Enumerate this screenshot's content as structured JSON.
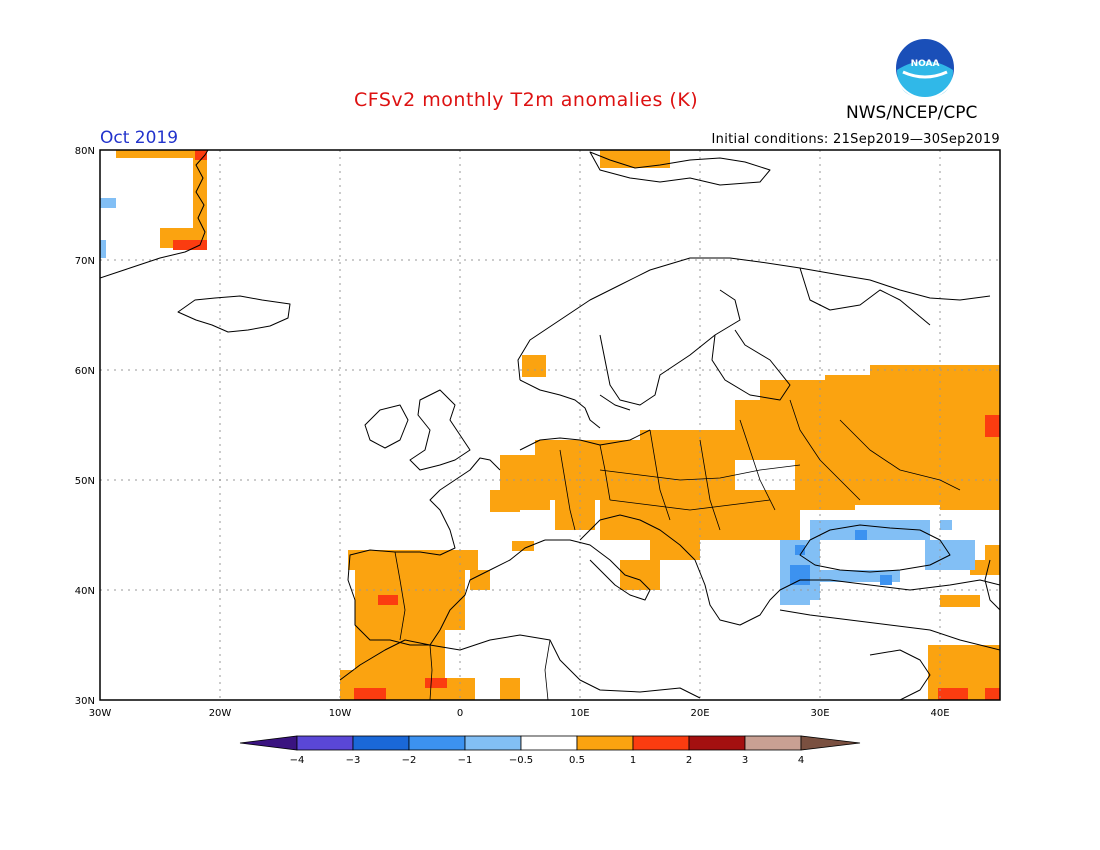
{
  "header": {
    "title": "CFSv2 monthly T2m anomalies (K)",
    "agency": "NWS/NCEP/CPC",
    "logo_text": "NOAA",
    "month_label": "Oct 2019",
    "init_conditions": "Initial conditions: 21Sep2019—30Sep2019"
  },
  "map": {
    "lon_ticks": [
      "30W",
      "20W",
      "10W",
      "0",
      "10E",
      "20E",
      "30E",
      "40E"
    ],
    "lat_ticks": [
      "30N",
      "40N",
      "50N",
      "60N",
      "70N",
      "80N"
    ],
    "lon_range": [
      -30,
      45
    ],
    "lat_range": [
      30,
      80
    ],
    "legend_labels": [
      "−4",
      "−3",
      "−2",
      "−1",
      "−0.5",
      "0.5",
      "1",
      "2",
      "3",
      "4"
    ]
  },
  "colors": {
    "title": "#dd1111",
    "month": "#2233cc",
    "bin_lt_m4": "#3a1380",
    "bin_m4_m3": "#5a47d6",
    "bin_m3_m2": "#1a68d8",
    "bin_m2_m1": "#3c92f0",
    "bin_m1_m05": "#82bff5",
    "bin_m05_05": "#ffffff",
    "bin_05_1": "#fba310",
    "bin_1_2": "#fb3c10",
    "bin_2_3": "#a41010",
    "bin_3_4": "#c9a093",
    "bin_gt_4": "#7a5040"
  }
}
